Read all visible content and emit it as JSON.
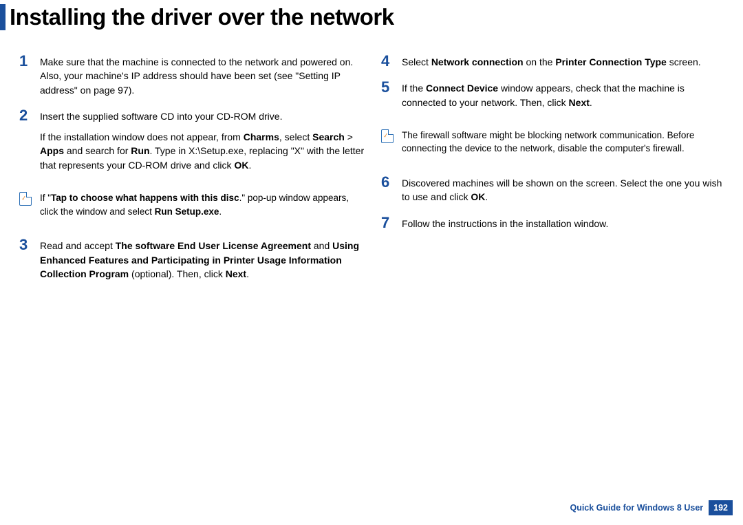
{
  "title": "Installing the driver over the network",
  "colors": {
    "accent": "#1a4f9c",
    "text": "#000000",
    "note_border": "#2b6fb5",
    "note_check": "#e68a2e",
    "background": "#ffffff"
  },
  "left_column": {
    "step1": {
      "num": "1",
      "p1": "Make sure that the machine is connected to the network and powered on. Also, your machine's IP address should have been set (see \"Setting IP address\" on page 97)."
    },
    "step2": {
      "num": "2",
      "p1": "Insert the supplied software CD into your CD-ROM drive.",
      "p2_pre": "If the installation window does not appear, from ",
      "p2_b1": "Charms",
      "p2_mid1": ", select ",
      "p2_b2": "Search",
      "p2_mid2": " > ",
      "p2_b3": "Apps",
      "p2_mid3": " and search for ",
      "p2_b4": "Run",
      "p2_mid4": ". Type in X:\\Setup.exe, replacing \"X\" with the letter that represents your CD-ROM drive and click ",
      "p2_b5": "OK",
      "p2_end": "."
    },
    "note1": {
      "pre": "If \"",
      "b1": "Tap to choose what happens with this disc",
      "mid": ".\" pop-up window appears, click the window and select ",
      "b2": "Run Setup.exe",
      "end": "."
    },
    "step3": {
      "num": "3",
      "pre": "Read and accept ",
      "b1": "The software End User License Agreement",
      "mid1": " and ",
      "b2": "Using Enhanced Features and Participating in Printer Usage Information Collection Program",
      "mid2": " (optional). Then, click ",
      "b3": "Next",
      "end": "."
    }
  },
  "right_column": {
    "step4": {
      "num": "4",
      "pre": "Select ",
      "b1": "Network connection",
      "mid": " on the ",
      "b2": "Printer Connection Type",
      "end": " screen."
    },
    "step5": {
      "num": "5",
      "pre": "If the ",
      "b1": "Connect Device",
      "mid": " window appears, check that the machine is connected to your network. Then, click ",
      "b2": "Next",
      "end": "."
    },
    "note2": {
      "text": "The firewall software might be blocking network communication. Before connecting the device to the network, disable the computer's firewall."
    },
    "step6": {
      "num": "6",
      "pre": "Discovered machines will be shown on the screen. Select the one you wish to use and click ",
      "b1": "OK",
      "end": "."
    },
    "step7": {
      "num": "7",
      "text": "Follow the instructions in the installation window."
    }
  },
  "footer": {
    "label": "Quick Guide for Windows 8 User",
    "page": "192"
  }
}
